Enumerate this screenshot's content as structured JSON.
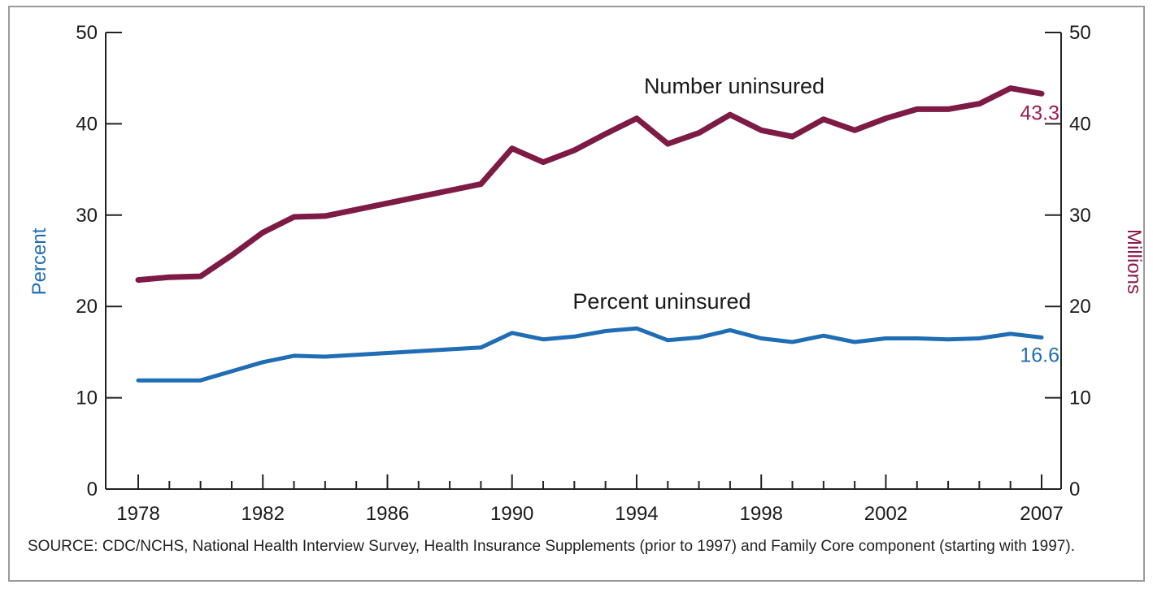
{
  "chart_data": {
    "type": "line",
    "xlim": [
      1978,
      2007
    ],
    "x_tick_labels": [
      "1978",
      "1982",
      "1986",
      "1990",
      "1994",
      "1998",
      "2002",
      "2007"
    ],
    "y_left": {
      "label": "Percent",
      "lim": [
        0,
        50
      ],
      "ticks": [
        "0",
        "10",
        "20",
        "30",
        "40",
        "50"
      ],
      "color": "#1f6db5"
    },
    "y_right": {
      "label": "Millions",
      "lim": [
        0,
        50
      ],
      "ticks": [
        "0",
        "10",
        "20",
        "30",
        "40",
        "50"
      ],
      "color": "#8b1a4a"
    },
    "x": [
      1978,
      1979,
      1980,
      1981,
      1982,
      1983,
      1984,
      1985,
      1986,
      1987,
      1988,
      1989,
      1990,
      1991,
      1992,
      1993,
      1994,
      1995,
      1996,
      1997,
      1998,
      1999,
      2000,
      2001,
      2002,
      2003,
      2004,
      2005,
      2006,
      2007
    ],
    "series": [
      {
        "name": "Number uninsured",
        "axis": "right",
        "color": "#7d1a45",
        "end_label": "43.3",
        "values": [
          22.9,
          23.2,
          23.3,
          25.6,
          28.1,
          29.8,
          29.9,
          30.6,
          31.3,
          32.0,
          32.7,
          33.4,
          37.3,
          35.8,
          37.1,
          38.9,
          40.6,
          37.8,
          39.0,
          41.0,
          39.3,
          38.6,
          40.5,
          39.3,
          40.6,
          41.6,
          41.6,
          42.2,
          43.9,
          43.3
        ]
      },
      {
        "name": "Percent uninsured",
        "axis": "left",
        "color": "#1f6db5",
        "end_label": "16.6",
        "values": [
          11.9,
          11.9,
          11.9,
          12.9,
          13.9,
          14.6,
          14.5,
          14.7,
          14.9,
          15.1,
          15.3,
          15.5,
          17.1,
          16.4,
          16.7,
          17.3,
          17.6,
          16.3,
          16.6,
          17.4,
          16.5,
          16.1,
          16.8,
          16.1,
          16.5,
          16.5,
          16.4,
          16.5,
          17.0,
          16.6
        ]
      }
    ],
    "annotations": [
      {
        "text": "Number uninsured",
        "series": "Number uninsured"
      },
      {
        "text": "Percent uninsured",
        "series": "Percent uninsured"
      }
    ],
    "grid": false
  },
  "source_note": "SOURCE: CDC/NCHS, National Health Interview Survey, Health Insurance Supplements (prior to 1997) and Family Core component (starting with 1997)."
}
